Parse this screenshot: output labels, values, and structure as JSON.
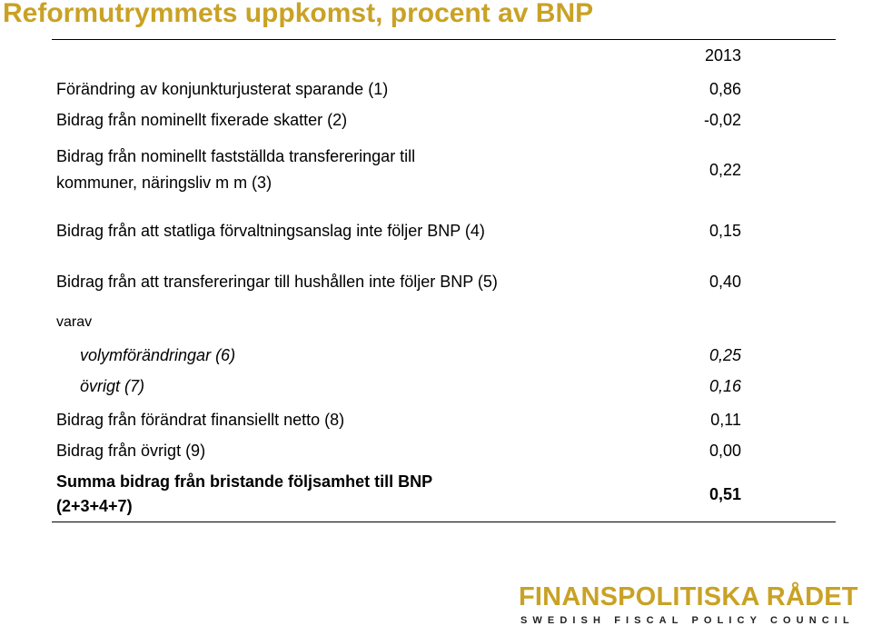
{
  "title": "Reformutrymmets uppkomst, procent av BNP",
  "table": {
    "column_header": "2013",
    "rows": [
      {
        "label": "Förändring av konjunkturjusterat sparande (1)",
        "value": "0,86"
      },
      {
        "label": "Bidrag från nominellt fixerade skatter (2)",
        "value": "-0,02"
      },
      {
        "label_line1": "Bidrag från nominellt fastställda transfereringar till",
        "label_line2": "kommuner, näringsliv m m (3)",
        "value": "0,22"
      },
      {
        "label": "Bidrag från att statliga förvaltningsanslag inte följer BNP (4)",
        "value": "0,15"
      },
      {
        "label": "Bidrag från att transfereringar till hushållen inte följer BNP (5)",
        "value": "0,40"
      },
      {
        "label": "varav"
      },
      {
        "label": "volymförändringar (6)",
        "value": "0,25"
      },
      {
        "label": "övrigt (7)",
        "value": "0,16"
      },
      {
        "label": "Bidrag från förändrat finansiellt netto (8)",
        "value": "0,11"
      },
      {
        "label": "Bidrag från övrigt (9)",
        "value": "0,00"
      },
      {
        "label_line1": "Summa bidrag från bristande följsamhet till BNP",
        "label_line2": "(2+3+4+7)",
        "value": "0,51"
      }
    ]
  },
  "logo": {
    "name": "FINANSPOLITISKA RÅDET",
    "subtitle": "SWEDISH FISCAL POLICY COUNCIL"
  },
  "colors": {
    "accent": "#c9a225",
    "text": "#000000"
  }
}
